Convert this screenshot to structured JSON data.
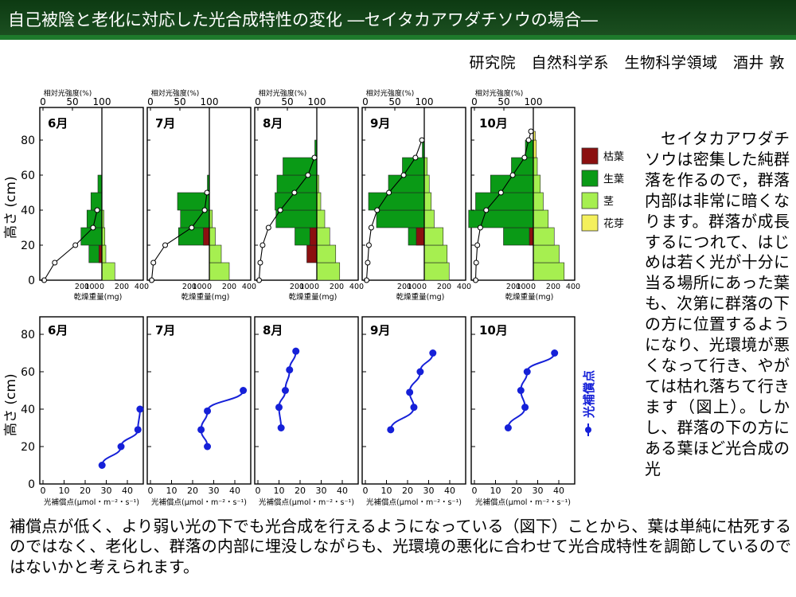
{
  "title": "自己被陰と老化に対応した光合成特性の変化 ―セイタカアワダチソウの場合―",
  "author": "研究院　自然科学系　生物科学領域　酒井 敦",
  "side_text": "セイタカアワダチソウは密集した純群落を作るので，群落内部は非常に暗くなります。群落が成長するにつれて、はじめは若く光が十分に当る場所にあった葉も、次第に群落の下の方に位置するようになり、光環境が悪くなって行き、やがては枯れ落ちて行きます（図上）。しかし、群落の下の方にある葉ほど光合成の光",
  "bottom_text": "補償点が低く、より弱い光の下でも光合成を行えるようになっている（図下）ことから、葉は単純に枯死するのではなく、老化し、群落の内部に埋没しながらも、光環境の悪化に合わせて光合成特性を調節しているのではないかと考えられます。",
  "colors": {
    "dead_leaf": "#8b1010",
    "green_leaf": "#0a9a16",
    "stem": "#a6ef50",
    "bud": "#f4f05c",
    "lcp_line": "#1520d8",
    "title_bg": "#113f16",
    "title_border": "#1e7a2c"
  },
  "legend": [
    {
      "label": "枯葉",
      "color": "#8b1010"
    },
    {
      "label": "生葉",
      "color": "#0a9a16"
    },
    {
      "label": "茎",
      "color": "#a6ef50"
    },
    {
      "label": "花芽",
      "color": "#f4f05c"
    }
  ],
  "top_charts": {
    "ylabel": "高さ (cm)",
    "top_axis_label": "相対光強度(%)",
    "top_ticks": [
      "0",
      "50",
      "100"
    ],
    "bottom_axis_label": "乾燥重量(mg)",
    "bottom_ticks": [
      "200",
      "100",
      "0",
      "200",
      "400"
    ],
    "y_ticks": [
      "0",
      "20",
      "40",
      "60",
      "80"
    ]
  },
  "bottom_charts": {
    "ylabel": "高さ (cm)",
    "xlabel": "光補償点(μmol・m⁻²・s⁻¹)",
    "x_ticks": [
      "0",
      "10",
      "20",
      "30",
      "40"
    ],
    "y_ticks": [
      "0",
      "20",
      "40",
      "60",
      "80"
    ],
    "legend_label": "光補償点"
  },
  "chart_data": [
    {
      "type": "bar",
      "kind": "profile",
      "month": "6月",
      "layers": [
        {
          "y": [
            0,
            10
          ],
          "stem": 130,
          "green": 0,
          "dead": 0
        },
        {
          "y": [
            10,
            20
          ],
          "stem": 40,
          "green": 130,
          "dead": 30
        },
        {
          "y": [
            20,
            30
          ],
          "stem": 30,
          "green": 210,
          "dead": 0
        },
        {
          "y": [
            30,
            40
          ],
          "stem": 20,
          "green": 150,
          "dead": 0
        },
        {
          "y": [
            40,
            50
          ],
          "stem": 0,
          "green": 110,
          "dead": 0
        },
        {
          "y": [
            50,
            60
          ],
          "stem": 0,
          "green": 40,
          "dead": 0
        }
      ],
      "light": [
        [
          2,
          0
        ],
        [
          20,
          10
        ],
        [
          55,
          20
        ],
        [
          85,
          30
        ],
        [
          92,
          40
        ]
      ]
    },
    {
      "type": "bar",
      "kind": "profile",
      "month": "7月",
      "layers": [
        {
          "y": [
            0,
            10
          ],
          "stem": 200,
          "green": 0,
          "dead": 0
        },
        {
          "y": [
            10,
            20
          ],
          "stem": 120,
          "green": 0,
          "dead": 0
        },
        {
          "y": [
            20,
            30
          ],
          "stem": 60,
          "green": 310,
          "dead": 60
        },
        {
          "y": [
            30,
            40
          ],
          "stem": 30,
          "green": 290,
          "dead": 0
        },
        {
          "y": [
            40,
            50
          ],
          "stem": 0,
          "green": 320,
          "dead": 0
        },
        {
          "y": [
            50,
            60
          ],
          "stem": 0,
          "green": 20,
          "dead": 0
        }
      ],
      "light": [
        [
          2,
          0
        ],
        [
          5,
          10
        ],
        [
          25,
          20
        ],
        [
          70,
          30
        ],
        [
          92,
          40
        ],
        [
          96,
          50
        ]
      ]
    },
    {
      "type": "bar",
      "kind": "profile",
      "month": "8月",
      "layers": [
        {
          "y": [
            0,
            10
          ],
          "stem": 230,
          "green": 0,
          "dead": 0
        },
        {
          "y": [
            10,
            20
          ],
          "stem": 190,
          "green": 0,
          "dead": 100
        },
        {
          "y": [
            20,
            30
          ],
          "stem": 130,
          "green": 220,
          "dead": 70
        },
        {
          "y": [
            30,
            40
          ],
          "stem": 80,
          "green": 410,
          "dead": 0
        },
        {
          "y": [
            40,
            50
          ],
          "stem": 40,
          "green": 420,
          "dead": 0
        },
        {
          "y": [
            50,
            60
          ],
          "stem": 20,
          "green": 400,
          "dead": 0
        },
        {
          "y": [
            60,
            70
          ],
          "stem": 0,
          "green": 340,
          "dead": 0
        },
        {
          "y": [
            70,
            80
          ],
          "stem": 0,
          "green": 20,
          "dead": 0
        }
      ],
      "light": [
        [
          2,
          0
        ],
        [
          4,
          10
        ],
        [
          8,
          20
        ],
        [
          18,
          30
        ],
        [
          38,
          40
        ],
        [
          62,
          50
        ],
        [
          85,
          60
        ],
        [
          96,
          70
        ]
      ]
    },
    {
      "type": "bar",
      "kind": "profile",
      "month": "9月",
      "layers": [
        {
          "y": [
            0,
            10
          ],
          "stem": 250,
          "green": 0,
          "dead": 0
        },
        {
          "y": [
            10,
            20
          ],
          "stem": 230,
          "green": 0,
          "dead": 0
        },
        {
          "y": [
            20,
            30
          ],
          "stem": 190,
          "green": 160,
          "dead": 80
        },
        {
          "y": [
            30,
            40
          ],
          "stem": 100,
          "green": 480,
          "dead": 0
        },
        {
          "y": [
            40,
            50
          ],
          "stem": 70,
          "green": 560,
          "dead": 0
        },
        {
          "y": [
            50,
            60
          ],
          "stem": 50,
          "green": 360,
          "dead": 0
        },
        {
          "y": [
            60,
            70
          ],
          "stem": 30,
          "green": 220,
          "dead": 0
        },
        {
          "y": [
            70,
            80
          ],
          "stem": 0,
          "green": 20,
          "dead": 0
        }
      ],
      "light": [
        [
          2,
          0
        ],
        [
          4,
          10
        ],
        [
          6,
          20
        ],
        [
          10,
          30
        ],
        [
          20,
          40
        ],
        [
          40,
          50
        ],
        [
          65,
          60
        ],
        [
          85,
          70
        ],
        [
          96,
          80
        ]
      ]
    },
    {
      "type": "bar",
      "kind": "profile",
      "month": "10月",
      "layers": [
        {
          "y": [
            0,
            10
          ],
          "stem": 310,
          "green": 0,
          "dead": 0
        },
        {
          "y": [
            10,
            20
          ],
          "stem": 260,
          "green": 0,
          "dead": 0
        },
        {
          "y": [
            20,
            30
          ],
          "stem": 210,
          "green": 300,
          "dead": 40
        },
        {
          "y": [
            30,
            40
          ],
          "stem": 150,
          "green": 650,
          "dead": 0
        },
        {
          "y": [
            40,
            50
          ],
          "stem": 100,
          "green": 580,
          "dead": 0
        },
        {
          "y": [
            50,
            60
          ],
          "stem": 70,
          "green": 430,
          "dead": 0
        },
        {
          "y": [
            60,
            70
          ],
          "stem": 40,
          "green": 220,
          "dead": 0
        },
        {
          "y": [
            70,
            80
          ],
          "stem": 20,
          "green": 80,
          "dead": 0,
          "bud": 30
        },
        {
          "y": [
            80,
            85
          ],
          "stem": 0,
          "green": 0,
          "dead": 0,
          "bud": 20
        }
      ],
      "light": [
        [
          2,
          0
        ],
        [
          3,
          10
        ],
        [
          5,
          20
        ],
        [
          10,
          30
        ],
        [
          20,
          40
        ],
        [
          45,
          50
        ],
        [
          65,
          60
        ],
        [
          85,
          70
        ],
        [
          92,
          80
        ],
        [
          96,
          85
        ]
      ]
    },
    {
      "type": "line",
      "month": "6月",
      "series": [
        {
          "name": "光補償点",
          "points": [
            [
              28,
              10
            ],
            [
              37,
              20
            ],
            [
              45,
              29
            ],
            [
              46,
              40
            ]
          ]
        }
      ]
    },
    {
      "type": "line",
      "month": "7月",
      "series": [
        {
          "name": "光補償点",
          "points": [
            [
              27,
              20
            ],
            [
              24,
              29
            ],
            [
              27,
              39
            ],
            [
              44,
              50
            ]
          ]
        }
      ]
    },
    {
      "type": "line",
      "month": "8月",
      "series": [
        {
          "name": "光補償点",
          "points": [
            [
              11,
              30
            ],
            [
              10,
              41
            ],
            [
              13,
              50
            ],
            [
              15,
              61
            ],
            [
              18,
              71
            ]
          ]
        }
      ]
    },
    {
      "type": "line",
      "month": "9月",
      "series": [
        {
          "name": "光補償点",
          "points": [
            [
              12,
              29
            ],
            [
              23,
              41
            ],
            [
              21,
              49
            ],
            [
              26,
              60
            ],
            [
              32,
              70
            ]
          ]
        }
      ]
    },
    {
      "type": "line",
      "month": "10月",
      "series": [
        {
          "name": "光補償点",
          "points": [
            [
              16,
              30
            ],
            [
              24,
              41
            ],
            [
              22,
              50
            ],
            [
              25,
              60
            ],
            [
              38,
              70
            ]
          ]
        }
      ]
    }
  ]
}
